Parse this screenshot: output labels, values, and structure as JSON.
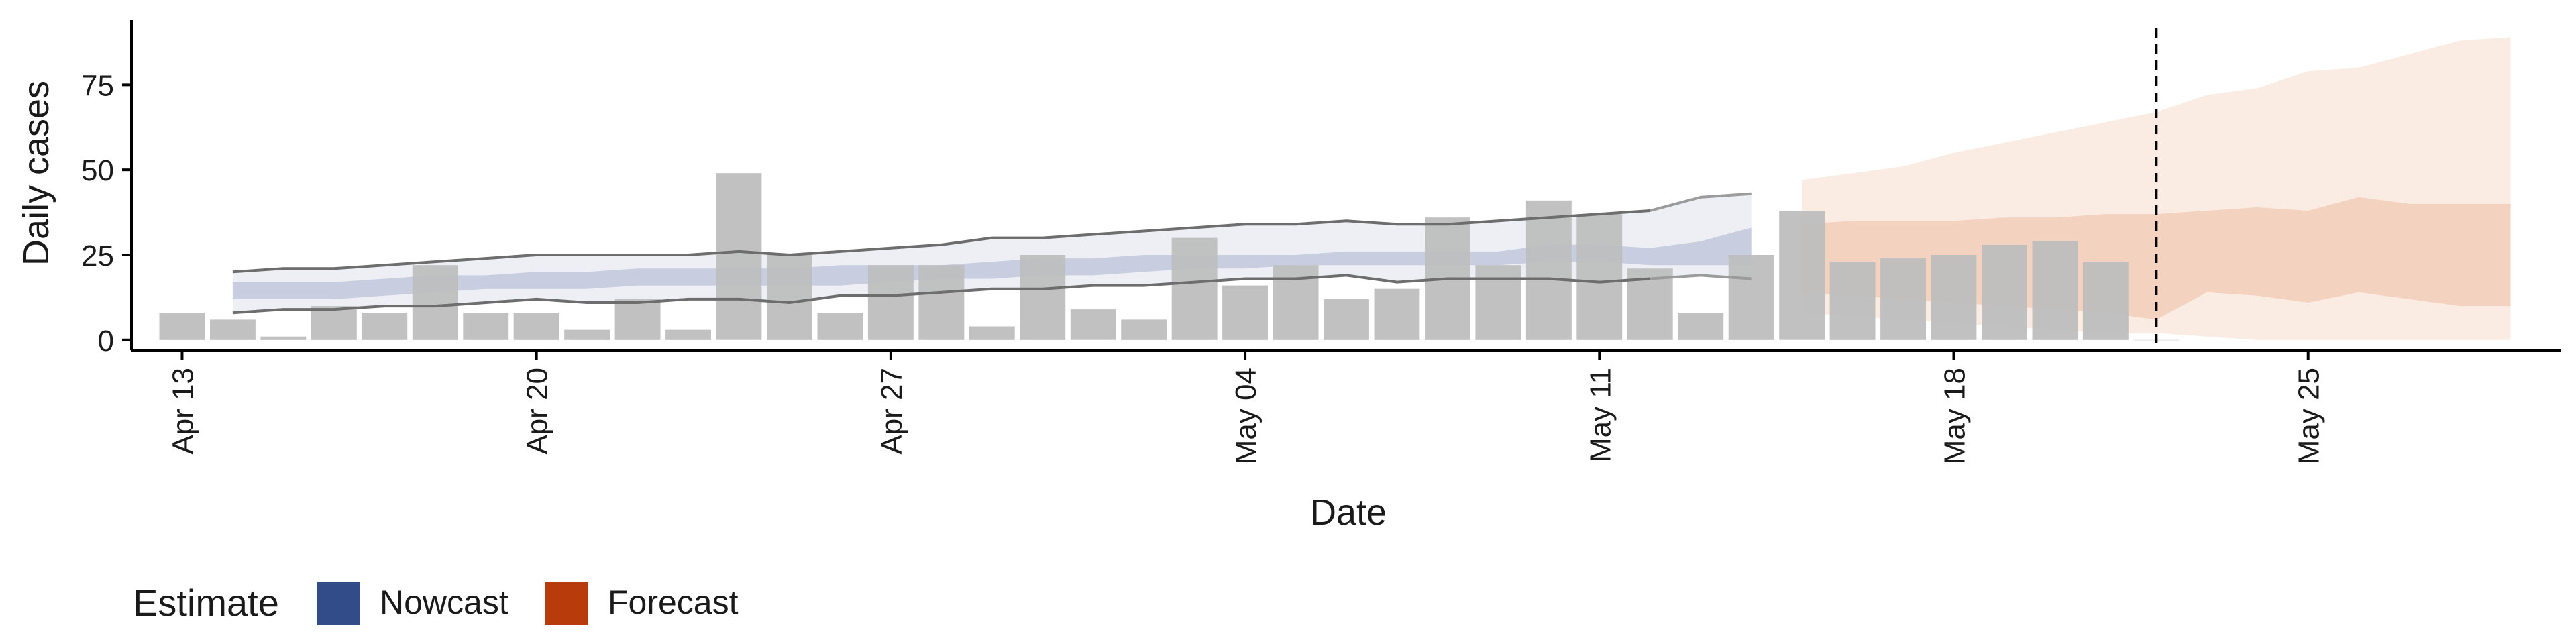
{
  "chart_data": {
    "type": "bar",
    "xlabel": "Date",
    "ylabel": "Daily cases",
    "y_ticks": [
      0,
      25,
      50,
      75
    ],
    "ylim": [
      -3,
      94
    ],
    "x_ticks": [
      "Apr 13",
      "Apr 20",
      "Apr 27",
      "May 04",
      "May 11",
      "May 18",
      "May 25"
    ],
    "x_range": [
      "2020-04-12",
      "2020-05-30"
    ],
    "reference_line_date": "2020-05-22",
    "legend": {
      "title": "Estimate",
      "placement": "bottom-left",
      "items": [
        {
          "label": "Nowcast",
          "color": "#324c89"
        },
        {
          "label": "Forecast",
          "color": "#b83b0b"
        }
      ]
    },
    "colors": {
      "bars": "#bebebe",
      "nowcast_band": "#8491b8",
      "forecast_band": "#e8a27e",
      "quantile_line": "#6d6d6d",
      "quantile_line_light": "#9b9b9b",
      "axis": "#000000"
    },
    "daily_cases": {
      "dates": [
        "2020-04-13",
        "2020-04-14",
        "2020-04-15",
        "2020-04-16",
        "2020-04-17",
        "2020-04-18",
        "2020-04-19",
        "2020-04-20",
        "2020-04-21",
        "2020-04-22",
        "2020-04-23",
        "2020-04-24",
        "2020-04-25",
        "2020-04-26",
        "2020-04-27",
        "2020-04-28",
        "2020-04-29",
        "2020-04-30",
        "2020-05-01",
        "2020-05-02",
        "2020-05-03",
        "2020-05-04",
        "2020-05-05",
        "2020-05-06",
        "2020-05-07",
        "2020-05-08",
        "2020-05-09",
        "2020-05-10",
        "2020-05-11",
        "2020-05-12",
        "2020-05-13",
        "2020-05-14",
        "2020-05-15",
        "2020-05-16",
        "2020-05-17",
        "2020-05-18",
        "2020-05-19",
        "2020-05-20",
        "2020-05-21",
        "2020-05-22"
      ],
      "values": [
        8,
        6,
        1,
        10,
        8,
        22,
        8,
        8,
        3,
        12,
        3,
        49,
        25,
        8,
        22,
        22,
        4,
        25,
        9,
        6,
        30,
        16,
        22,
        12,
        15,
        36,
        22,
        41,
        37,
        21,
        8,
        25,
        38,
        23,
        24,
        25,
        28,
        29,
        23,
        0
      ]
    },
    "nowcast": {
      "dates": [
        "2020-04-14",
        "2020-04-15",
        "2020-04-16",
        "2020-04-17",
        "2020-04-18",
        "2020-04-19",
        "2020-04-20",
        "2020-04-21",
        "2020-04-22",
        "2020-04-23",
        "2020-04-24",
        "2020-04-25",
        "2020-04-26",
        "2020-04-27",
        "2020-04-28",
        "2020-04-29",
        "2020-04-30",
        "2020-05-01",
        "2020-05-02",
        "2020-05-03",
        "2020-05-04",
        "2020-05-05",
        "2020-05-06",
        "2020-05-07",
        "2020-05-08",
        "2020-05-09",
        "2020-05-10",
        "2020-05-11",
        "2020-05-12",
        "2020-05-13",
        "2020-05-14"
      ],
      "q05": [
        8,
        9,
        9,
        10,
        10,
        11,
        12,
        11,
        11,
        12,
        12,
        11,
        13,
        13,
        14,
        15,
        15,
        16,
        16,
        17,
        18,
        18,
        19,
        17,
        18,
        18,
        18,
        17,
        18,
        19,
        18
      ],
      "q25": [
        12,
        12,
        12,
        13,
        14,
        15,
        15,
        15,
        16,
        16,
        16,
        16,
        16,
        17,
        18,
        18,
        19,
        19,
        20,
        21,
        21,
        22,
        22,
        22,
        22,
        22,
        23,
        23,
        22,
        22,
        22
      ],
      "q75": [
        17,
        17,
        17,
        18,
        19,
        19,
        20,
        20,
        21,
        21,
        21,
        21,
        22,
        22,
        22,
        23,
        24,
        24,
        25,
        25,
        25,
        25,
        26,
        26,
        26,
        26,
        28,
        28,
        27,
        29,
        33
      ],
      "q95": [
        20,
        21,
        21,
        22,
        23,
        24,
        25,
        25,
        25,
        25,
        26,
        25,
        26,
        27,
        28,
        30,
        30,
        31,
        32,
        33,
        34,
        34,
        35,
        34,
        34,
        35,
        36,
        37,
        38,
        42,
        43
      ]
    },
    "forecast": {
      "dates": [
        "2020-05-15",
        "2020-05-16",
        "2020-05-17",
        "2020-05-18",
        "2020-05-19",
        "2020-05-20",
        "2020-05-21",
        "2020-05-22",
        "2020-05-23",
        "2020-05-24",
        "2020-05-25",
        "2020-05-26",
        "2020-05-27",
        "2020-05-28",
        "2020-05-29"
      ],
      "q05": [
        8,
        7,
        6,
        5,
        4,
        3,
        2,
        2,
        1,
        0,
        0,
        0,
        0,
        0,
        0
      ],
      "q25": [
        14,
        13,
        12,
        11,
        10,
        9,
        8,
        6,
        14,
        13,
        11,
        14,
        12,
        10,
        10
      ],
      "q75": [
        34,
        35,
        35,
        35,
        36,
        36,
        37,
        37,
        38,
        39,
        38,
        42,
        40,
        40,
        40
      ],
      "q95": [
        47,
        49,
        51,
        55,
        58,
        61,
        64,
        67,
        72,
        74,
        79,
        80,
        84,
        88,
        89
      ]
    }
  }
}
